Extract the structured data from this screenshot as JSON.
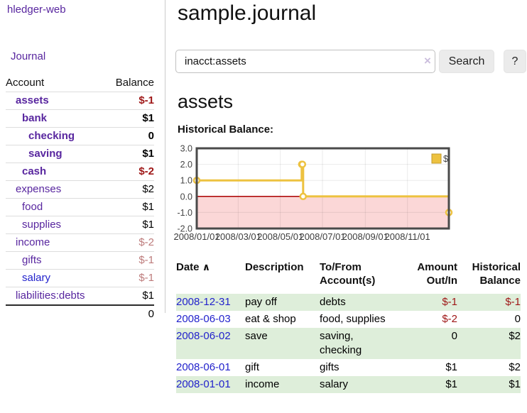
{
  "colors": {
    "link_purple": "#58269f",
    "link_blue": "#2222cc",
    "negative_strong": "#9e1616",
    "negative_soft": "#bd7b7b",
    "row_green": "#deeeda",
    "series_gold": "#edc240",
    "negative_region_pink": "#fbd7d7",
    "zero_line_red": "#aa0000"
  },
  "sidebar": {
    "brand": "hledger-web",
    "nav": {
      "journal": "Journal"
    },
    "accounts": {
      "headers": {
        "account": "Account",
        "balance": "Balance"
      },
      "rows": [
        {
          "name": "assets",
          "depth": 1,
          "in_query": true,
          "balance": "$-1"
        },
        {
          "name": "bank",
          "depth": 2,
          "in_query": true,
          "balance": "$1"
        },
        {
          "name": "checking",
          "depth": 3,
          "in_query": true,
          "balance": "0"
        },
        {
          "name": "saving",
          "depth": 3,
          "in_query": true,
          "balance": "$1"
        },
        {
          "name": "cash",
          "depth": 2,
          "in_query": true,
          "balance": "$-2"
        },
        {
          "name": "expenses",
          "depth": 1,
          "in_query": false,
          "balance": "$2"
        },
        {
          "name": "food",
          "depth": 2,
          "in_query": false,
          "balance": "$1"
        },
        {
          "name": "supplies",
          "depth": 2,
          "in_query": false,
          "balance": "$1"
        },
        {
          "name": "income",
          "depth": 1,
          "in_query": false,
          "balance": "$-2"
        },
        {
          "name": "gifts",
          "depth": 2,
          "in_query": false,
          "balance": "$-1"
        },
        {
          "name": "salary",
          "depth": 2,
          "in_query": false,
          "balance": "$-1",
          "link_color": "blue"
        },
        {
          "name": "liabilities:debts",
          "depth": 1,
          "in_query": false,
          "balance": "$1"
        }
      ],
      "total": "0"
    }
  },
  "header": {
    "title": "sample.journal"
  },
  "search": {
    "value": "inacct:assets",
    "clear_icon": "×",
    "button_label": "Search",
    "help_label": "?"
  },
  "account_page": {
    "heading": "assets",
    "section_label": "Historical Balance:"
  },
  "chart_data": {
    "type": "line",
    "title": "Historical Balance",
    "style": "step",
    "series": [
      {
        "name": "$",
        "color": "#edc240",
        "points": [
          {
            "date": "2008-01-01",
            "day": 0,
            "value": 1
          },
          {
            "date": "2008-06-01",
            "day": 152,
            "value": 2
          },
          {
            "date": "2008-06-02",
            "day": 153,
            "value": 2
          },
          {
            "date": "2008-06-03",
            "day": 154,
            "value": 0
          },
          {
            "date": "2008-12-31",
            "day": 365,
            "value": -1
          }
        ]
      }
    ],
    "x_ticks": [
      {
        "label": "2008/01/01",
        "day": 0
      },
      {
        "label": "2008/03/01",
        "day": 60
      },
      {
        "label": "2008/05/01",
        "day": 121
      },
      {
        "label": "2008/07/01",
        "day": 182
      },
      {
        "label": "2008/09/01",
        "day": 244
      },
      {
        "label": "2008/11/01",
        "day": 305
      }
    ],
    "y_ticks": [
      {
        "label": "3.0",
        "value": 3
      },
      {
        "label": "2.0",
        "value": 2
      },
      {
        "label": "1.0",
        "value": 1
      },
      {
        "label": "0.0",
        "value": 0
      },
      {
        "label": "-1.0",
        "value": -1
      },
      {
        "label": "-2.0",
        "value": -2
      }
    ],
    "xlim_days": [
      0,
      365
    ],
    "ylim": [
      -2,
      3
    ],
    "grid": true,
    "legend": {
      "position": "top-right",
      "items": [
        {
          "label": "$",
          "color": "#edc240"
        }
      ]
    },
    "negative_region_color": "#fbd7d7",
    "zero_line_color": "#aa0000"
  },
  "register": {
    "headers": {
      "date": "Date",
      "sort_indicator": "∧",
      "description": "Description",
      "accounts": "To/From\nAccount(s)",
      "amount": "Amount\nOut/In",
      "balance": "Historical\nBalance"
    },
    "rows": [
      {
        "date": "2008-12-31",
        "description": "pay off",
        "accounts": "debts",
        "amount": "$-1",
        "balance": "$-1"
      },
      {
        "date": "2008-06-03",
        "description": "eat & shop",
        "accounts": "food, supplies",
        "amount": "$-2",
        "balance": "0"
      },
      {
        "date": "2008-06-02",
        "description": "save",
        "accounts": "saving,\nchecking",
        "amount": "0",
        "balance": "$2"
      },
      {
        "date": "2008-06-01",
        "description": "gift",
        "accounts": "gifts",
        "amount": "$1",
        "balance": "$2"
      },
      {
        "date": "2008-01-01",
        "description": "income",
        "accounts": "salary",
        "amount": "$1",
        "balance": "$1"
      }
    ]
  }
}
